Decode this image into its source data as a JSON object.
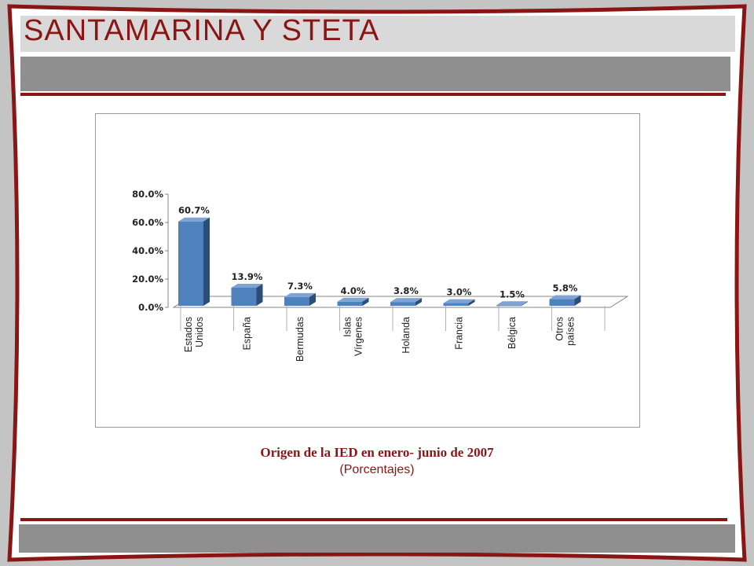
{
  "header": {
    "brand": "SANTAMARINA Y STETA"
  },
  "caption": {
    "title": "Origen de la IED en enero- junio de 2007",
    "subtitle": "(Porcentajes)"
  },
  "colors": {
    "accent": "#8a1515",
    "bar_front": "#4f81bd",
    "bar_top": "#7fa4d4",
    "bar_side": "#2c4d75"
  },
  "chart_data": {
    "type": "bar",
    "categories": [
      [
        "Estados",
        "Unidos"
      ],
      [
        "España"
      ],
      [
        "Bermudas"
      ],
      [
        "Islas",
        "Vírgenes"
      ],
      [
        "Holanda"
      ],
      [
        "Francia"
      ],
      [
        "Bélgica"
      ],
      [
        "Otros",
        "países"
      ]
    ],
    "values": [
      60.7,
      13.9,
      7.3,
      4.0,
      3.8,
      3.0,
      1.5,
      5.8
    ],
    "data_labels": [
      "60.7%",
      "13.9%",
      "7.3%",
      "4.0%",
      "3.8%",
      "3.0%",
      "1.5%",
      "5.8%"
    ],
    "y_ticks": [
      "0.0%",
      "20.0%",
      "40.0%",
      "60.0%",
      "80.0%"
    ],
    "ylim": [
      0,
      80
    ],
    "grid": false,
    "legend": "none"
  }
}
